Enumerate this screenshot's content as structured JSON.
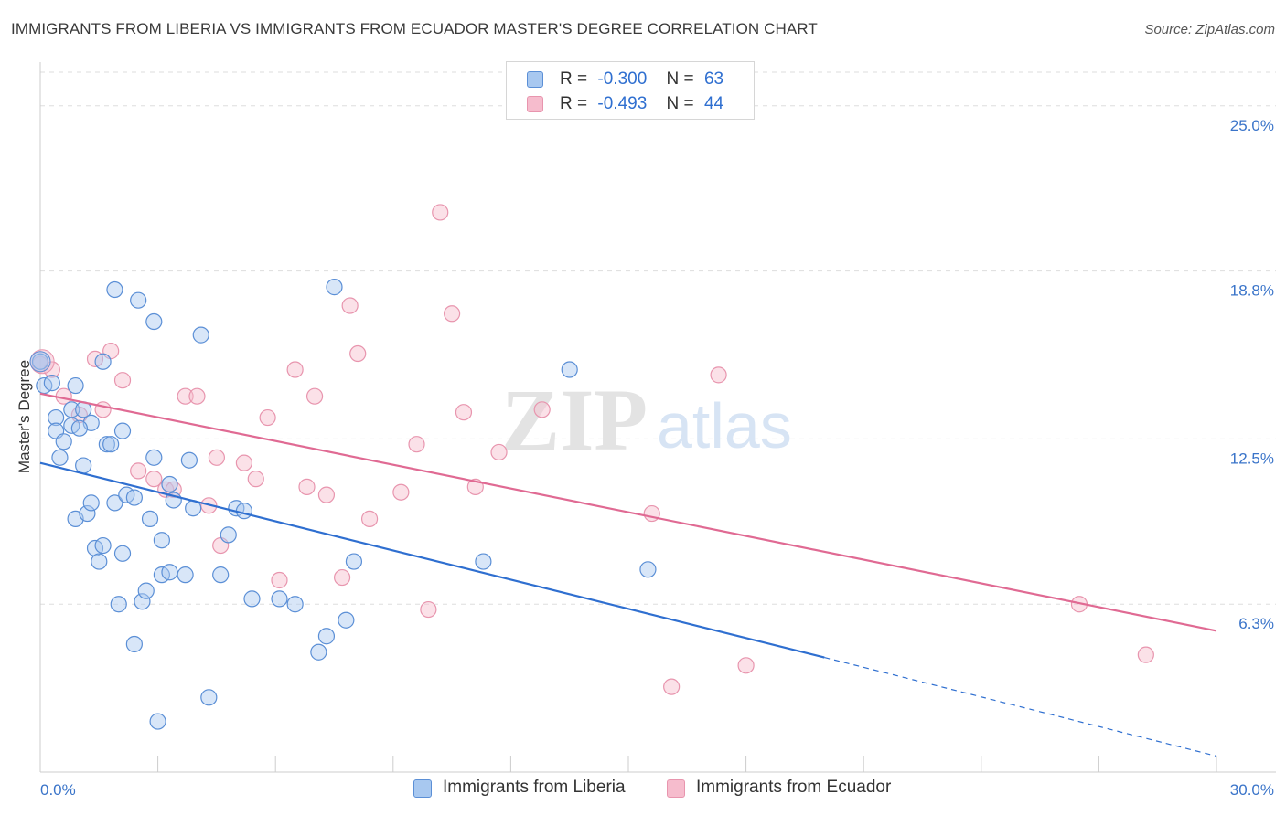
{
  "colors": {
    "liberia_fill": "#a8c8f0",
    "liberia_stroke": "#5b8fd6",
    "liberia_line": "#2f6fd0",
    "ecuador_fill": "#f6bccd",
    "ecuador_stroke": "#e895ae",
    "ecuador_line": "#e06a93",
    "tick_label": "#3a74c9",
    "grid": "#dddddd",
    "axis": "#cccccc"
  },
  "header": {
    "title": "IMMIGRANTS FROM LIBERIA VS IMMIGRANTS FROM ECUADOR MASTER'S DEGREE CORRELATION CHART",
    "source": "Source: ZipAtlas.com"
  },
  "legend": {
    "r_label": "R =",
    "n_label": "N =",
    "liberia": {
      "r": "-0.300",
      "n": "63"
    },
    "ecuador": {
      "r": "-0.493",
      "n": "44"
    }
  },
  "watermark": {
    "zip": "ZIP",
    "atlas": "atlas"
  },
  "chart_data": {
    "type": "scatter",
    "title": "IMMIGRANTS FROM LIBERIA VS IMMIGRANTS FROM ECUADOR MASTER'S DEGREE CORRELATION CHART",
    "xlabel": "",
    "ylabel": "Master's Degree",
    "xlim": [
      0,
      30
    ],
    "ylim": [
      0,
      26.5
    ],
    "x_tick_labels": [
      "0.0%",
      "30.0%"
    ],
    "y_ticks": [
      6.3,
      12.5,
      18.8,
      25.0
    ],
    "y_tick_labels": [
      "6.3%",
      "12.5%",
      "18.8%",
      "25.0%"
    ],
    "grid": true,
    "legend_position": "bottom-center",
    "series": [
      {
        "name": "Immigrants from Liberia",
        "r": -0.3,
        "n": 63,
        "trend": {
          "x0": 0,
          "y0": 11.6,
          "x1": 20.0,
          "y1": 4.3,
          "dash_to_x": 30,
          "dash_to_y": 0.6
        },
        "points": [
          [
            0.0,
            15.4
          ],
          [
            0.1,
            14.5
          ],
          [
            0.3,
            14.6
          ],
          [
            0.4,
            13.3
          ],
          [
            0.4,
            12.8
          ],
          [
            0.5,
            11.8
          ],
          [
            0.6,
            12.4
          ],
          [
            0.8,
            13.6
          ],
          [
            0.8,
            13.0
          ],
          [
            0.9,
            9.5
          ],
          [
            0.9,
            14.5
          ],
          [
            1.1,
            13.6
          ],
          [
            1.1,
            11.5
          ],
          [
            1.2,
            9.7
          ],
          [
            1.3,
            13.1
          ],
          [
            1.3,
            10.1
          ],
          [
            1.4,
            8.4
          ],
          [
            1.5,
            7.9
          ],
          [
            1.6,
            8.5
          ],
          [
            1.6,
            15.4
          ],
          [
            1.7,
            12.3
          ],
          [
            1.8,
            12.3
          ],
          [
            1.9,
            18.1
          ],
          [
            1.9,
            10.1
          ],
          [
            2.0,
            6.3
          ],
          [
            2.1,
            12.8
          ],
          [
            2.1,
            8.2
          ],
          [
            2.2,
            10.4
          ],
          [
            2.4,
            10.3
          ],
          [
            2.4,
            4.8
          ],
          [
            2.5,
            17.7
          ],
          [
            2.6,
            6.4
          ],
          [
            2.7,
            6.8
          ],
          [
            2.8,
            9.5
          ],
          [
            2.9,
            16.9
          ],
          [
            2.9,
            11.8
          ],
          [
            3.0,
            1.9
          ],
          [
            3.1,
            8.7
          ],
          [
            3.1,
            7.4
          ],
          [
            3.3,
            7.5
          ],
          [
            3.3,
            10.8
          ],
          [
            3.4,
            10.2
          ],
          [
            3.7,
            7.4
          ],
          [
            3.8,
            11.7
          ],
          [
            3.9,
            9.9
          ],
          [
            4.1,
            16.4
          ],
          [
            4.3,
            2.8
          ],
          [
            4.6,
            7.4
          ],
          [
            4.8,
            8.9
          ],
          [
            5.0,
            9.9
          ],
          [
            5.2,
            9.8
          ],
          [
            5.4,
            6.5
          ],
          [
            6.1,
            6.5
          ],
          [
            6.5,
            6.3
          ],
          [
            7.1,
            4.5
          ],
          [
            7.3,
            5.1
          ],
          [
            7.5,
            18.2
          ],
          [
            7.8,
            5.7
          ],
          [
            8.0,
            7.9
          ],
          [
            11.3,
            7.9
          ],
          [
            13.5,
            15.1
          ],
          [
            15.5,
            7.6
          ],
          [
            1.0,
            12.9
          ]
        ]
      },
      {
        "name": "Immigrants from Ecuador",
        "r": -0.493,
        "n": 44,
        "trend": {
          "x0": 0,
          "y0": 14.2,
          "x1": 30,
          "y1": 5.3
        },
        "points": [
          [
            0.0,
            15.3
          ],
          [
            0.3,
            15.1
          ],
          [
            0.6,
            14.1
          ],
          [
            1.0,
            13.4
          ],
          [
            1.4,
            15.5
          ],
          [
            1.6,
            13.6
          ],
          [
            1.8,
            15.8
          ],
          [
            2.1,
            14.7
          ],
          [
            2.5,
            11.3
          ],
          [
            2.9,
            11.0
          ],
          [
            3.2,
            10.6
          ],
          [
            3.4,
            10.6
          ],
          [
            3.7,
            14.1
          ],
          [
            4.0,
            14.1
          ],
          [
            4.3,
            10.0
          ],
          [
            4.5,
            11.8
          ],
          [
            4.6,
            8.5
          ],
          [
            5.2,
            11.6
          ],
          [
            5.5,
            11.0
          ],
          [
            5.8,
            13.3
          ],
          [
            6.1,
            7.2
          ],
          [
            6.5,
            15.1
          ],
          [
            6.8,
            10.7
          ],
          [
            7.0,
            14.1
          ],
          [
            7.3,
            10.4
          ],
          [
            7.7,
            7.3
          ],
          [
            7.9,
            17.5
          ],
          [
            8.1,
            15.7
          ],
          [
            8.4,
            9.5
          ],
          [
            9.2,
            10.5
          ],
          [
            9.6,
            12.3
          ],
          [
            9.9,
            6.1
          ],
          [
            10.2,
            21.0
          ],
          [
            10.5,
            17.2
          ],
          [
            10.8,
            13.5
          ],
          [
            11.1,
            10.7
          ],
          [
            11.7,
            12.0
          ],
          [
            12.8,
            13.6
          ],
          [
            15.6,
            9.7
          ],
          [
            16.1,
            3.2
          ],
          [
            17.3,
            14.9
          ],
          [
            18.0,
            4.0
          ],
          [
            26.5,
            6.3
          ],
          [
            28.2,
            4.4
          ]
        ]
      }
    ]
  },
  "bottom_legend": {
    "liberia": "Immigrants from Liberia",
    "ecuador": "Immigrants from Ecuador"
  }
}
